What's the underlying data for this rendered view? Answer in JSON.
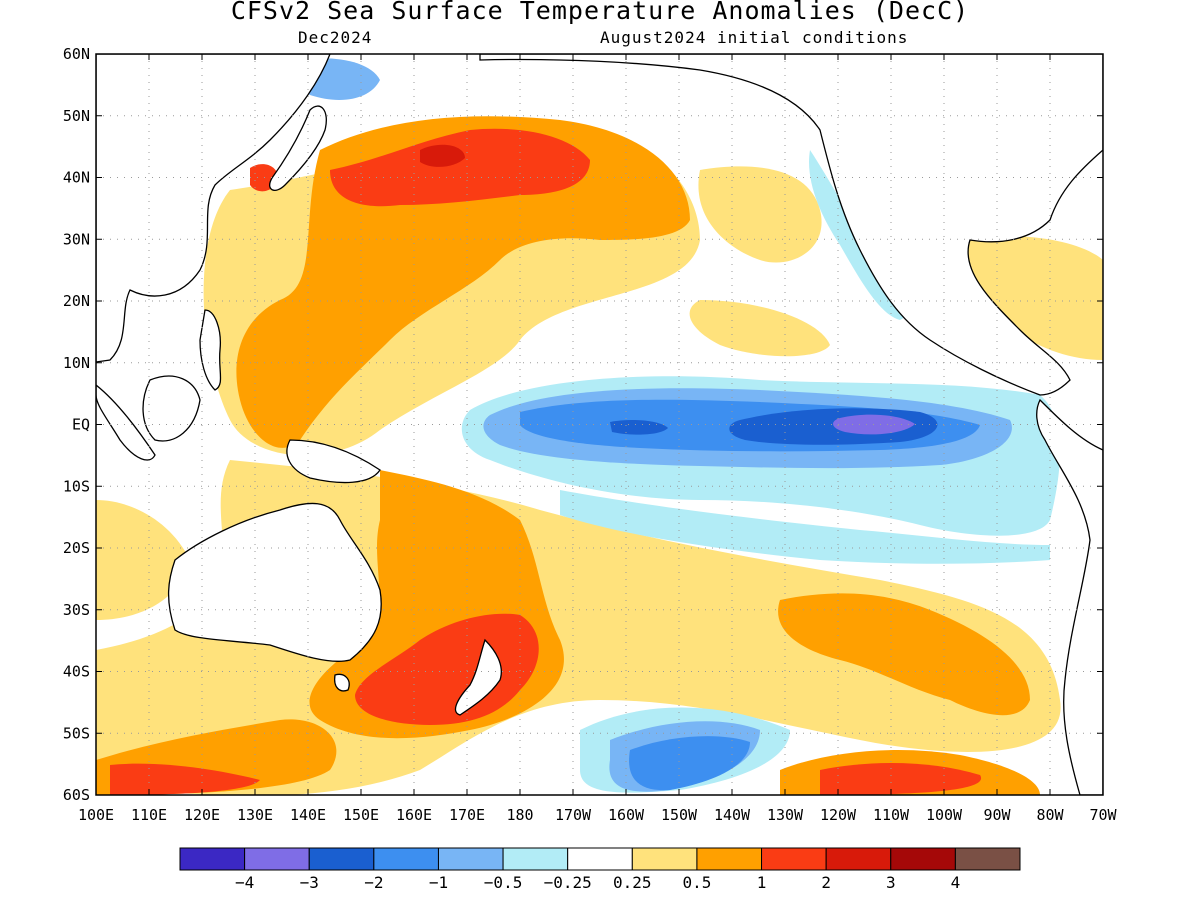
{
  "title": "CFSv2 Sea Surface Temperature Anomalies (DecC)",
  "subtitle_left": "Dec2024",
  "subtitle_right": "August2024 initial conditions",
  "lat_labels": [
    "60N",
    "50N",
    "40N",
    "30N",
    "20N",
    "10N",
    "EQ",
    "10S",
    "20S",
    "30S",
    "40S",
    "50S",
    "60S"
  ],
  "lon_labels": [
    "100E",
    "110E",
    "120E",
    "130E",
    "140E",
    "150E",
    "160E",
    "170E",
    "180",
    "170W",
    "160W",
    "150W",
    "140W",
    "130W",
    "120W",
    "110W",
    "100W",
    "90W",
    "80W",
    "70W"
  ],
  "colorbar": {
    "colors": [
      "#3b28c4",
      "#7f6de6",
      "#1a5fd0",
      "#3d8ff0",
      "#78b5f5",
      "#b2ecf6",
      "#ffffff",
      "#ffe27c",
      "#ffa000",
      "#fa3c14",
      "#d81a0a",
      "#a50808",
      "#7a5045"
    ],
    "labels": [
      "−4",
      "−3",
      "−2",
      "−1",
      "−0.5",
      "−0.25",
      "0.25",
      "0.5",
      "1",
      "2",
      "3",
      "4"
    ]
  },
  "colors": {
    "land": "#ffffff",
    "coast": "#000000",
    "grid": "#9a9a9a"
  }
}
